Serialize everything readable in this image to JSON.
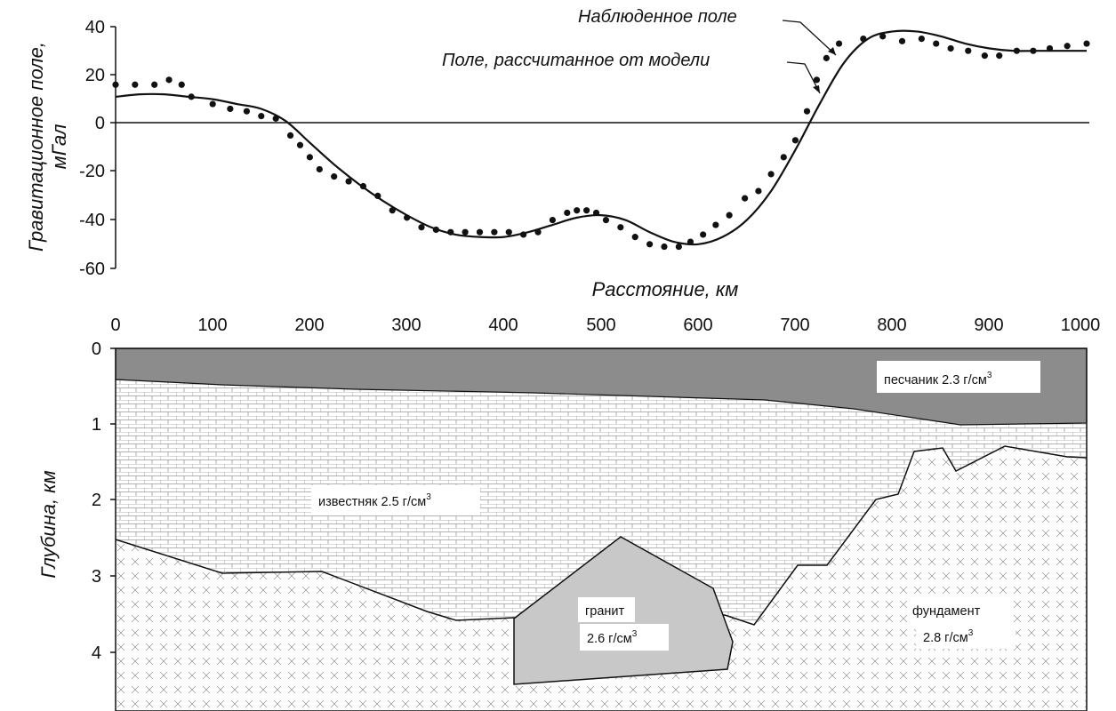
{
  "gravity_panel": {
    "ylabel_line1": "Гравитационное поле,",
    "ylabel_line2": "мГал",
    "yticks": [
      "40",
      "20",
      "0",
      "-20",
      "-40",
      "-60"
    ],
    "observed_label": "Наблюденное поле",
    "model_label": "Поле, рассчитанное от модели"
  },
  "distance_axis": {
    "label": "Расстояние, км",
    "ticks": [
      "0",
      "100",
      "200",
      "300",
      "400",
      "500",
      "600",
      "700",
      "800",
      "900",
      "1000"
    ]
  },
  "section_panel": {
    "ylabel": "Глубина, км",
    "yticks": [
      "0",
      "1",
      "2",
      "3",
      "4"
    ],
    "sandstone": {
      "name": "песчаник 2.3 г/см",
      "sup": "3",
      "color": "#8c8c8c"
    },
    "limestone": {
      "name": "известняк 2.5 г/см",
      "sup": "3"
    },
    "granite": {
      "name": "гранит",
      "density": "2.6 г/см",
      "sup": "3",
      "color": "#c8c8c8"
    },
    "basement": {
      "name": "фундамент",
      "density": "2.8 г/см",
      "sup": "3"
    }
  },
  "chart_data": {
    "type": "scatter",
    "x_unit": "km",
    "xlim": [
      0,
      1000
    ],
    "ylim": [
      -60,
      40
    ],
    "series": [
      {
        "name": "Наблюденное поле",
        "x": [
          0,
          20,
          40,
          55,
          68,
          78,
          100,
          118,
          135,
          150,
          165,
          180,
          190,
          200,
          210,
          225,
          240,
          255,
          270,
          285,
          300,
          315,
          330,
          345,
          360,
          375,
          390,
          405,
          420,
          435,
          450,
          465,
          475,
          485,
          495,
          505,
          520,
          535,
          550,
          565,
          580,
          592,
          605,
          618,
          632,
          648,
          662,
          675,
          688,
          700,
          712,
          722,
          732,
          745,
          770,
          790,
          810,
          830,
          845,
          860,
          878,
          895,
          910,
          928,
          945,
          962,
          980,
          1000
        ],
        "values": [
          16,
          16,
          16,
          18,
          16,
          11,
          8,
          6,
          5,
          3,
          2,
          -5,
          -9,
          -14,
          -19,
          -22,
          -24,
          -26,
          -30,
          -36,
          -39,
          -43,
          -44,
          -45,
          -45,
          -45,
          -45,
          -45,
          -46,
          -45,
          -40,
          -37,
          -36,
          -36,
          -37,
          -40,
          -43,
          -47,
          -50,
          -51,
          -51,
          -49,
          -46,
          -42,
          -38,
          -31,
          -28,
          -21,
          -14,
          -7,
          5,
          18,
          27,
          33,
          35,
          36,
          34,
          35,
          33,
          31,
          30,
          28,
          28,
          30,
          30,
          31,
          32,
          33
        ]
      },
      {
        "name": "Поле, рассчитанное от модели",
        "x": [
          0,
          25,
          50,
          75,
          100,
          125,
          150,
          175,
          200,
          225,
          250,
          275,
          300,
          325,
          350,
          375,
          400,
          425,
          450,
          475,
          500,
          525,
          550,
          575,
          600,
          625,
          650,
          675,
          700,
          725,
          750,
          775,
          800,
          825,
          850,
          875,
          900,
          925,
          950,
          975,
          1000
        ],
        "values": [
          11,
          12,
          12,
          11,
          10,
          8,
          6,
          1,
          -8,
          -17,
          -25,
          -32,
          -38,
          -43,
          -46,
          -47,
          -47,
          -45,
          -42,
          -39,
          -38,
          -40,
          -45,
          -49,
          -50,
          -47,
          -40,
          -28,
          -11,
          8,
          25,
          35,
          38,
          38,
          36,
          33,
          31,
          30,
          30,
          30,
          30
        ]
      }
    ]
  }
}
